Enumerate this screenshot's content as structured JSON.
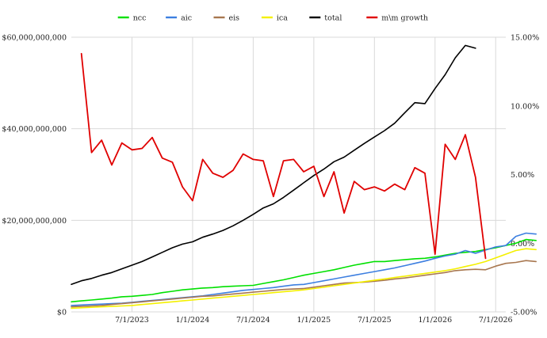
{
  "chart_data": {
    "type": "line",
    "title": "",
    "xlabel": "",
    "ylabel": "",
    "x_tick_labels": [
      "7/1/2023",
      "1/1/2024",
      "7/1/2024",
      "1/1/2025",
      "7/1/2025",
      "1/1/2026",
      "7/1/2026"
    ],
    "y_left": {
      "ylim": [
        0,
        60000000000
      ],
      "tick_values": [
        0,
        20000000000,
        40000000000,
        60000000000
      ],
      "tick_labels": [
        "$0",
        "$20,000,000,000",
        "$40,000,000,000",
        "$60,000,000,000"
      ]
    },
    "y_right": {
      "ylim": [
        -5,
        15
      ],
      "tick_values": [
        -5,
        0,
        5,
        10,
        15
      ],
      "tick_labels": [
        "-5.00%",
        "0.00%",
        "5.00%",
        "10.00%",
        "15.00%"
      ]
    },
    "grid": true,
    "legend_position": "top-center",
    "x_start_month": "2023-01",
    "series": [
      {
        "name": "ncc",
        "color": "#00e000",
        "axis": "left",
        "values": [
          2.2,
          2.4,
          2.6,
          2.8,
          3.0,
          3.3,
          3.4,
          3.6,
          3.8,
          4.2,
          4.5,
          4.8,
          5.0,
          5.2,
          5.3,
          5.5,
          5.6,
          5.7,
          5.8,
          6.2,
          6.6,
          7.0,
          7.5,
          8.0,
          8.4,
          8.8,
          9.2,
          9.7,
          10.2,
          10.6,
          11.0,
          11.0,
          11.2,
          11.4,
          11.6,
          11.7,
          12.0,
          12.4,
          12.8,
          13.0,
          13.2,
          13.6,
          14.0,
          14.5,
          15.0,
          15.8,
          15.6
        ]
      },
      {
        "name": "aic",
        "color": "#3d7fe0",
        "axis": "left",
        "values": [
          1.4,
          1.5,
          1.6,
          1.7,
          1.8,
          1.9,
          2.1,
          2.3,
          2.5,
          2.7,
          2.9,
          3.1,
          3.3,
          3.5,
          3.8,
          4.1,
          4.4,
          4.7,
          4.9,
          5.1,
          5.3,
          5.6,
          5.9,
          6.0,
          6.4,
          6.8,
          7.2,
          7.6,
          8.0,
          8.4,
          8.8,
          9.2,
          9.6,
          10.1,
          10.6,
          11.1,
          11.7,
          12.2,
          12.6,
          13.4,
          12.8,
          13.5,
          14.2,
          14.5,
          16.5,
          17.2,
          17.0
        ]
      },
      {
        "name": "eis",
        "color": "#a8774f",
        "axis": "left",
        "values": [
          1.1,
          1.2,
          1.3,
          1.4,
          1.6,
          1.8,
          2.0,
          2.2,
          2.4,
          2.6,
          2.8,
          3.0,
          3.2,
          3.4,
          3.5,
          3.7,
          3.9,
          4.1,
          4.3,
          4.5,
          4.7,
          4.9,
          5.0,
          5.1,
          5.4,
          5.7,
          6.0,
          6.3,
          6.4,
          6.5,
          6.7,
          6.9,
          7.2,
          7.4,
          7.7,
          8.0,
          8.3,
          8.6,
          9.0,
          9.2,
          9.3,
          9.2,
          10.0,
          10.6,
          10.8,
          11.2,
          11.0
        ]
      },
      {
        "name": "ica",
        "color": "#f4f000",
        "axis": "left",
        "values": [
          0.8,
          0.9,
          1.0,
          1.1,
          1.2,
          1.3,
          1.4,
          1.6,
          1.8,
          2.0,
          2.2,
          2.4,
          2.6,
          2.8,
          3.0,
          3.2,
          3.4,
          3.6,
          3.8,
          4.0,
          4.2,
          4.4,
          4.6,
          4.8,
          5.1,
          5.4,
          5.7,
          6.0,
          6.3,
          6.6,
          6.9,
          7.2,
          7.5,
          7.8,
          8.1,
          8.4,
          8.7,
          9.0,
          9.4,
          9.9,
          10.4,
          11.0,
          11.8,
          12.6,
          13.4,
          13.8,
          13.6
        ]
      },
      {
        "name": "total",
        "color": "#000000",
        "axis": "left",
        "values": [
          6.0,
          6.8,
          7.3,
          8.0,
          8.6,
          9.4,
          10.2,
          11.0,
          12.0,
          13.0,
          14.0,
          14.8,
          15.3,
          16.3,
          17.0,
          17.8,
          18.8,
          20.0,
          21.3,
          22.7,
          23.6,
          25.0,
          26.6,
          28.2,
          29.8,
          31.2,
          32.8,
          33.8,
          35.3,
          36.8,
          38.2,
          39.6,
          41.2,
          43.5,
          45.7,
          45.5,
          48.8,
          51.8,
          55.5,
          58.2,
          57.6
        ]
      },
      {
        "name": "m\\m growth",
        "color": "#e00000",
        "axis": "right",
        "x_offset": 1,
        "values": [
          13.8,
          6.6,
          7.5,
          5.7,
          7.3,
          6.8,
          6.9,
          7.7,
          6.2,
          5.9,
          4.1,
          3.1,
          6.1,
          5.1,
          4.8,
          5.3,
          6.5,
          6.1,
          6.0,
          3.4,
          6.0,
          6.1,
          5.2,
          5.6,
          3.4,
          5.2,
          2.2,
          4.5,
          3.9,
          4.1,
          3.8,
          4.3,
          3.9,
          5.5,
          5.1,
          -0.8,
          7.2,
          6.1,
          7.9,
          4.8,
          -1.1
        ]
      }
    ]
  }
}
